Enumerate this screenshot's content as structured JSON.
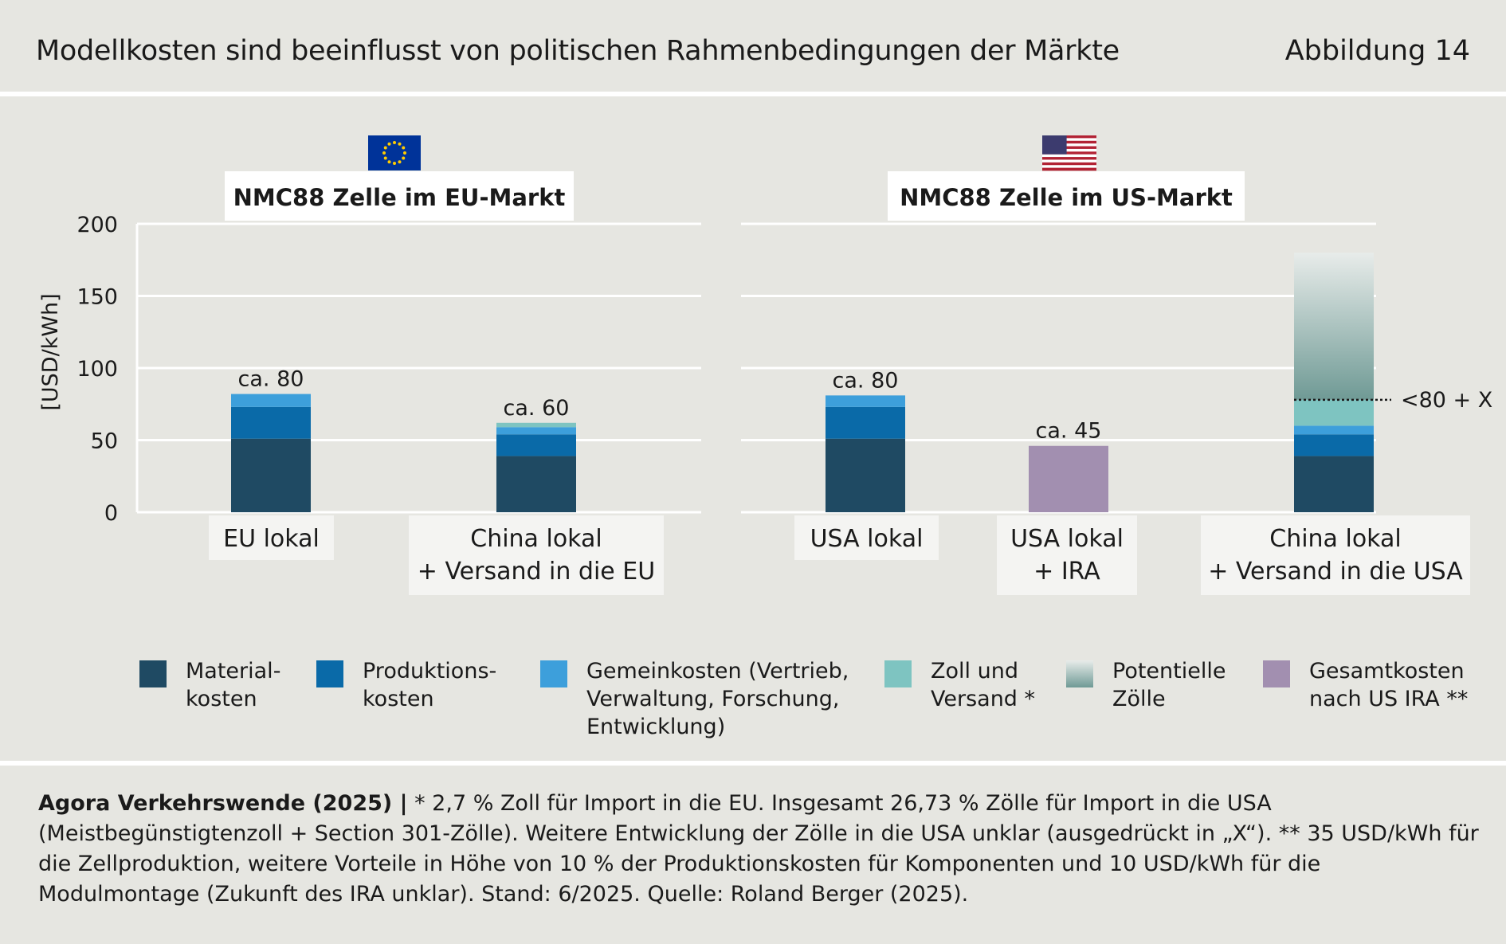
{
  "header": {
    "title": "Modellkosten sind beeinflusst von politischen Rahmenbedingungen der Märkte",
    "figure_label": "Abbildung 14"
  },
  "colors": {
    "material": "#1f4a63",
    "produktion": "#0a6aa8",
    "gemein": "#3d9fdb",
    "zoll": "#7ec4c1",
    "potentiell_top": "#e8ecea",
    "potentiell_bottom": "#6f9a95",
    "ira": "#a28fb0",
    "background": "#e6e6e1",
    "grid": "#ffffff"
  },
  "chart_data": [
    {
      "type": "bar",
      "stacked": true,
      "title": "NMC88 Zelle im EU-Markt",
      "flag": "eu-flag-icon",
      "ylabel": "[USD/kWh]",
      "ylim": [
        0,
        200
      ],
      "yticks": [
        0,
        50,
        100,
        150,
        200
      ],
      "grid": true,
      "categories": [
        "EU lokal",
        "China lokal\n+ Versand in die EU"
      ],
      "series": [
        {
          "name": "Materialkosten",
          "key": "material",
          "values": [
            51,
            39
          ]
        },
        {
          "name": "Produktionskosten",
          "key": "produktion",
          "values": [
            22,
            15
          ]
        },
        {
          "name": "Gemeinkosten",
          "key": "gemein",
          "values": [
            9,
            5
          ]
        },
        {
          "name": "Zoll und Versand",
          "key": "zoll",
          "values": [
            0,
            3
          ]
        }
      ],
      "annotations": [
        "ca. 80",
        "ca. 60"
      ]
    },
    {
      "type": "bar",
      "stacked": true,
      "title": "NMC88 Zelle im US-Markt",
      "flag": "us-flag-icon",
      "ylim": [
        0,
        200
      ],
      "grid": true,
      "categories": [
        "USA lokal",
        "USA lokal\n+ IRA",
        "China lokal\n+ Versand in die USA"
      ],
      "series": [
        {
          "name": "Materialkosten",
          "key": "material",
          "values": [
            51,
            0,
            39
          ]
        },
        {
          "name": "Produktionskosten",
          "key": "produktion",
          "values": [
            22,
            0,
            15
          ]
        },
        {
          "name": "Gemeinkosten",
          "key": "gemein",
          "values": [
            8,
            0,
            6
          ]
        },
        {
          "name": "Zoll und Versand",
          "key": "zoll",
          "values": [
            0,
            0,
            18
          ]
        },
        {
          "name": "Potentielle Zölle",
          "key": "potentiell",
          "values": [
            0,
            0,
            102
          ]
        },
        {
          "name": "Gesamtkosten nach US IRA",
          "key": "ira",
          "values": [
            0,
            46,
            0
          ]
        }
      ],
      "annotations": [
        "ca. 80",
        "ca. 45",
        ""
      ],
      "reference_line": {
        "value": 78,
        "label": "<80 + X"
      }
    }
  ],
  "legend": [
    {
      "key": "material",
      "label": "Material-\nkosten"
    },
    {
      "key": "produktion",
      "label": "Produktions-\nkosten"
    },
    {
      "key": "gemein",
      "label": "Gemeinkosten (Vertrieb,\nVerwaltung, Forschung,\nEntwicklung)"
    },
    {
      "key": "zoll",
      "label": "Zoll und\nVersand *"
    },
    {
      "key": "potentiell",
      "label": "Potentielle\nZölle"
    },
    {
      "key": "ira",
      "label": "Gesamtkosten\nnach US IRA **"
    }
  ],
  "footer": {
    "source_bold": "Agora Verkehrswende (2025) |",
    "text": " * 2,7 % Zoll für Import in die EU. Insgesamt 26,73 % Zölle für Import in die USA (Meistbegünstigtenzoll + Section 301-Zölle). Weitere Entwicklung der Zölle in die USA unklar (ausgedrückt in „X“). ** 35 USD/kWh für die Zellproduktion, weitere Vorteile in Höhe von 10 % der Produktionskosten für Komponenten und 10 USD/kWh für die Modulmontage (Zukunft des IRA unklar). Stand: 6/2025. Quelle: Roland Berger (2025)."
  }
}
